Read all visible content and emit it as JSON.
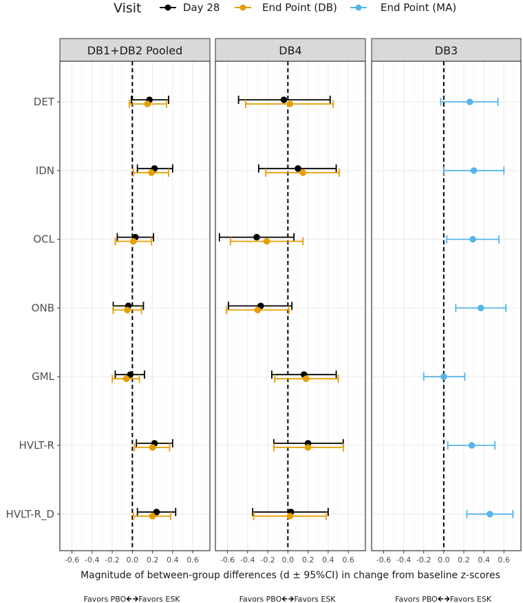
{
  "chart_data": {
    "type": "forest",
    "legend": {
      "title": "Visit",
      "placement": "top",
      "entries": [
        {
          "name": "Day 28",
          "color": "#000000"
        },
        {
          "name": "End Point (DB)",
          "color": "#E69F00"
        },
        {
          "name": "End Point (MA)",
          "color": "#56B4E9"
        }
      ]
    },
    "xlabel": "Magnitude of between-group differences (d ± 95%CI) in change from baseline z-scores",
    "xlim": [
      -0.72,
      0.77
    ],
    "xticks": [
      -0.6,
      -0.4,
      -0.2,
      0.0,
      0.2,
      0.4,
      0.6
    ],
    "xtick_labels": [
      "-0.6",
      "-0.4",
      "-0.2",
      "0.0",
      "0.2",
      "0.4",
      "0.6"
    ],
    "reference_line": 0,
    "categories": [
      "DET",
      "IDN",
      "OCL",
      "ONB",
      "GML",
      "HVLT-R",
      "HVLT-R_D"
    ],
    "favors": {
      "left": "Favors PBO",
      "right": "Favors ESK"
    },
    "panels": [
      {
        "title": "DB1+DB2 Pooled",
        "series": [
          {
            "name": "Day 28",
            "points": [
              {
                "cat": "DET",
                "est": 0.17,
                "lo": -0.01,
                "hi": 0.36
              },
              {
                "cat": "IDN",
                "est": 0.22,
                "lo": 0.05,
                "hi": 0.4
              },
              {
                "cat": "OCL",
                "est": 0.03,
                "lo": -0.15,
                "hi": 0.21
              },
              {
                "cat": "ONB",
                "est": -0.04,
                "lo": -0.19,
                "hi": 0.11
              },
              {
                "cat": "GML",
                "est": -0.02,
                "lo": -0.17,
                "hi": 0.12
              },
              {
                "cat": "HVLT-R",
                "est": 0.22,
                "lo": 0.04,
                "hi": 0.4
              },
              {
                "cat": "HVLT-R_D",
                "est": 0.24,
                "lo": 0.05,
                "hi": 0.43
              }
            ]
          },
          {
            "name": "End Point (DB)",
            "points": [
              {
                "cat": "DET",
                "est": 0.15,
                "lo": -0.03,
                "hi": 0.34
              },
              {
                "cat": "IDN",
                "est": 0.19,
                "lo": 0.01,
                "hi": 0.36
              },
              {
                "cat": "OCL",
                "est": 0.01,
                "lo": -0.17,
                "hi": 0.19
              },
              {
                "cat": "ONB",
                "est": -0.05,
                "lo": -0.19,
                "hi": 0.09
              },
              {
                "cat": "GML",
                "est": -0.06,
                "lo": -0.2,
                "hi": 0.07
              },
              {
                "cat": "HVLT-R",
                "est": 0.2,
                "lo": 0.02,
                "hi": 0.37
              },
              {
                "cat": "HVLT-R_D",
                "est": 0.2,
                "lo": 0.01,
                "hi": 0.38
              }
            ]
          }
        ]
      },
      {
        "title": "DB4",
        "series": [
          {
            "name": "Day 28",
            "points": [
              {
                "cat": "DET",
                "est": -0.04,
                "lo": -0.49,
                "hi": 0.42
              },
              {
                "cat": "IDN",
                "est": 0.1,
                "lo": -0.29,
                "hi": 0.48
              },
              {
                "cat": "OCL",
                "est": -0.31,
                "lo": -0.68,
                "hi": 0.06
              },
              {
                "cat": "ONB",
                "est": -0.27,
                "lo": -0.59,
                "hi": 0.04
              },
              {
                "cat": "GML",
                "est": 0.16,
                "lo": -0.16,
                "hi": 0.48
              },
              {
                "cat": "HVLT-R",
                "est": 0.2,
                "lo": -0.14,
                "hi": 0.55
              },
              {
                "cat": "HVLT-R_D",
                "est": 0.03,
                "lo": -0.35,
                "hi": 0.4
              }
            ]
          },
          {
            "name": "End Point (DB)",
            "points": [
              {
                "cat": "DET",
                "est": 0.02,
                "lo": -0.42,
                "hi": 0.45
              },
              {
                "cat": "IDN",
                "est": 0.15,
                "lo": -0.22,
                "hi": 0.51
              },
              {
                "cat": "OCL",
                "est": -0.21,
                "lo": -0.57,
                "hi": 0.15
              },
              {
                "cat": "ONB",
                "est": -0.3,
                "lo": -0.61,
                "hi": 0.01
              },
              {
                "cat": "GML",
                "est": 0.18,
                "lo": -0.13,
                "hi": 0.5
              },
              {
                "cat": "HVLT-R",
                "est": 0.2,
                "lo": -0.14,
                "hi": 0.55
              },
              {
                "cat": "HVLT-R_D",
                "est": 0.02,
                "lo": -0.34,
                "hi": 0.38
              }
            ]
          }
        ]
      },
      {
        "title": "DB3",
        "series": [
          {
            "name": "End Point (MA)",
            "points": [
              {
                "cat": "DET",
                "est": 0.26,
                "lo": -0.03,
                "hi": 0.54
              },
              {
                "cat": "IDN",
                "est": 0.3,
                "lo": 0.0,
                "hi": 0.6
              },
              {
                "cat": "OCL",
                "est": 0.29,
                "lo": 0.03,
                "hi": 0.55
              },
              {
                "cat": "ONB",
                "est": 0.37,
                "lo": 0.12,
                "hi": 0.62
              },
              {
                "cat": "GML",
                "est": 0.0,
                "lo": -0.2,
                "hi": 0.21
              },
              {
                "cat": "HVLT-R",
                "est": 0.28,
                "lo": 0.04,
                "hi": 0.51
              },
              {
                "cat": "HVLT-R_D",
                "est": 0.46,
                "lo": 0.23,
                "hi": 0.69
              }
            ]
          }
        ]
      }
    ]
  }
}
